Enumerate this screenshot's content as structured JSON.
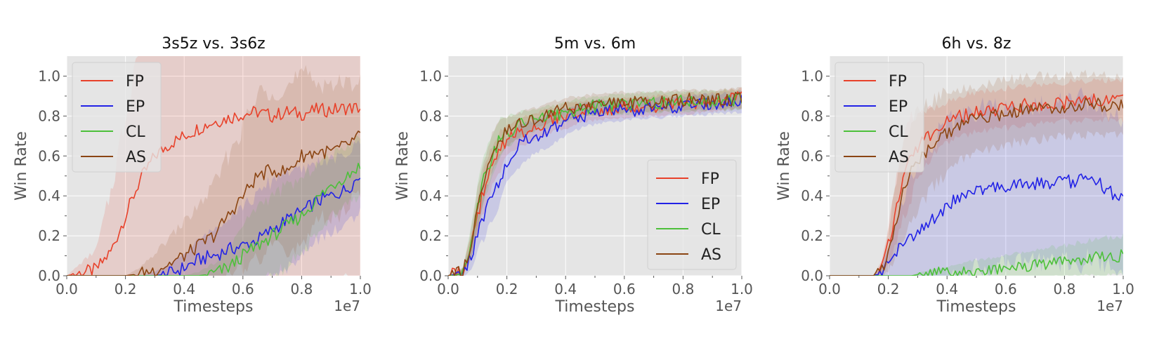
{
  "chart_data": [
    {
      "type": "line",
      "title": "3s5z vs. 3s6z",
      "xlabel": "Timesteps",
      "ylabel": "Win Rate",
      "x_offset_text": "1e7",
      "xlim": [
        0.0,
        1.0
      ],
      "ylim": [
        0.0,
        1.1
      ],
      "xticks": [
        "0.0",
        "0.2",
        "0.4",
        "0.6",
        "0.8",
        "1.0"
      ],
      "yticks": [
        "0.0",
        "0.2",
        "0.4",
        "0.6",
        "0.8",
        "1.0"
      ],
      "grid": true,
      "legend_position": "top-left",
      "x": [
        0.0,
        0.1,
        0.15,
        0.2,
        0.25,
        0.3,
        0.35,
        0.4,
        0.45,
        0.5,
        0.55,
        0.6,
        0.65,
        0.7,
        0.75,
        0.8,
        0.85,
        0.9,
        0.95,
        1.0
      ],
      "series": [
        {
          "name": "FP",
          "color": "#e8412a",
          "values": [
            0.0,
            0.03,
            0.12,
            0.3,
            0.48,
            0.6,
            0.66,
            0.7,
            0.74,
            0.77,
            0.79,
            0.81,
            0.82,
            0.8,
            0.82,
            0.81,
            0.83,
            0.83,
            0.84,
            0.84
          ],
          "band": [
            0.0,
            0.1,
            0.3,
            0.5,
            0.75,
            0.92,
            1.0,
            1.0,
            1.0,
            1.0,
            1.0,
            1.0,
            1.0,
            1.0,
            1.0,
            1.0,
            1.0,
            1.0,
            1.0,
            1.0
          ]
        },
        {
          "name": "EP",
          "color": "#2222e6",
          "values": [
            0.0,
            0.0,
            0.0,
            0.0,
            0.0,
            0.0,
            0.01,
            0.04,
            0.08,
            0.1,
            0.13,
            0.15,
            0.18,
            0.23,
            0.28,
            0.32,
            0.37,
            0.4,
            0.43,
            0.5
          ],
          "band": [
            0.0,
            0.0,
            0.0,
            0.0,
            0.0,
            0.02,
            0.04,
            0.07,
            0.1,
            0.13,
            0.17,
            0.2,
            0.22,
            0.25,
            0.25,
            0.2,
            0.2,
            0.18,
            0.17,
            0.18
          ]
        },
        {
          "name": "CL",
          "color": "#4cc03a",
          "values": [
            0.0,
            0.0,
            0.0,
            0.0,
            0.0,
            0.0,
            0.0,
            0.0,
            0.0,
            0.01,
            0.04,
            0.1,
            0.15,
            0.2,
            0.25,
            0.3,
            0.38,
            0.45,
            0.5,
            0.55
          ],
          "band": [
            0.0,
            0.0,
            0.0,
            0.0,
            0.0,
            0.0,
            0.0,
            0.0,
            0.02,
            0.05,
            0.1,
            0.15,
            0.2,
            0.2,
            0.2,
            0.18,
            0.18,
            0.15,
            0.15,
            0.15
          ]
        },
        {
          "name": "AS",
          "color": "#8b4513",
          "values": [
            0.0,
            0.0,
            0.0,
            0.0,
            0.01,
            0.03,
            0.06,
            0.1,
            0.15,
            0.2,
            0.3,
            0.4,
            0.5,
            0.53,
            0.52,
            0.6,
            0.62,
            0.62,
            0.65,
            0.7
          ],
          "band": [
            0.0,
            0.0,
            0.0,
            0.0,
            0.03,
            0.08,
            0.13,
            0.17,
            0.2,
            0.25,
            0.3,
            0.35,
            0.4,
            0.42,
            0.42,
            0.4,
            0.35,
            0.35,
            0.3,
            0.3
          ]
        }
      ]
    },
    {
      "type": "line",
      "title": "5m vs. 6m",
      "xlabel": "Timesteps",
      "ylabel": "Win Rate",
      "x_offset_text": "1e7",
      "xlim": [
        0.0,
        1.0
      ],
      "ylim": [
        0.0,
        1.1
      ],
      "xticks": [
        "0.0",
        "0.2",
        "0.4",
        "0.6",
        "0.8",
        "1.0"
      ],
      "yticks": [
        "0.0",
        "0.2",
        "0.4",
        "0.6",
        "0.8",
        "1.0"
      ],
      "grid": true,
      "legend_position": "bottom-right",
      "x": [
        0.0,
        0.05,
        0.08,
        0.1,
        0.12,
        0.15,
        0.18,
        0.2,
        0.25,
        0.3,
        0.35,
        0.4,
        0.45,
        0.5,
        0.6,
        0.7,
        0.8,
        0.9,
        1.0
      ],
      "series": [
        {
          "name": "FP",
          "color": "#e8412a",
          "values": [
            0.0,
            0.02,
            0.15,
            0.3,
            0.42,
            0.55,
            0.63,
            0.68,
            0.72,
            0.75,
            0.78,
            0.8,
            0.82,
            0.83,
            0.84,
            0.85,
            0.86,
            0.87,
            0.89
          ],
          "band": [
            0.0,
            0.02,
            0.06,
            0.08,
            0.1,
            0.1,
            0.1,
            0.08,
            0.07,
            0.07,
            0.06,
            0.06,
            0.05,
            0.05,
            0.05,
            0.05,
            0.05,
            0.05,
            0.05
          ]
        },
        {
          "name": "EP",
          "color": "#2222e6",
          "values": [
            0.0,
            0.01,
            0.1,
            0.22,
            0.3,
            0.4,
            0.5,
            0.58,
            0.66,
            0.7,
            0.73,
            0.77,
            0.8,
            0.82,
            0.83,
            0.84,
            0.85,
            0.86,
            0.87
          ],
          "band": [
            0.0,
            0.02,
            0.06,
            0.1,
            0.12,
            0.12,
            0.12,
            0.1,
            0.1,
            0.08,
            0.08,
            0.07,
            0.06,
            0.06,
            0.05,
            0.05,
            0.05,
            0.05,
            0.05
          ]
        },
        {
          "name": "CL",
          "color": "#4cc03a",
          "values": [
            0.0,
            0.02,
            0.18,
            0.35,
            0.48,
            0.6,
            0.7,
            0.72,
            0.76,
            0.78,
            0.8,
            0.82,
            0.84,
            0.85,
            0.86,
            0.87,
            0.87,
            0.88,
            0.88
          ],
          "band": [
            0.0,
            0.02,
            0.08,
            0.1,
            0.12,
            0.1,
            0.1,
            0.08,
            0.06,
            0.06,
            0.05,
            0.05,
            0.05,
            0.05,
            0.05,
            0.05,
            0.05,
            0.05,
            0.05
          ]
        },
        {
          "name": "AS",
          "color": "#8b4513",
          "values": [
            0.0,
            0.02,
            0.17,
            0.33,
            0.47,
            0.62,
            0.7,
            0.72,
            0.76,
            0.79,
            0.82,
            0.84,
            0.85,
            0.86,
            0.87,
            0.87,
            0.88,
            0.88,
            0.89
          ],
          "band": [
            0.0,
            0.02,
            0.07,
            0.1,
            0.1,
            0.1,
            0.08,
            0.07,
            0.06,
            0.05,
            0.05,
            0.05,
            0.05,
            0.05,
            0.05,
            0.05,
            0.05,
            0.05,
            0.05
          ]
        }
      ]
    },
    {
      "type": "line",
      "title": "6h vs. 8z",
      "xlabel": "Timesteps",
      "ylabel": "Win Rate",
      "x_offset_text": "1e7",
      "xlim": [
        0.0,
        1.0
      ],
      "ylim": [
        0.0,
        1.1
      ],
      "xticks": [
        "0.0",
        "0.2",
        "0.4",
        "0.6",
        "0.8",
        "1.0"
      ],
      "yticks": [
        "0.0",
        "0.2",
        "0.4",
        "0.6",
        "0.8",
        "1.0"
      ],
      "grid": true,
      "legend_position": "top-left",
      "x": [
        0.0,
        0.15,
        0.18,
        0.2,
        0.22,
        0.25,
        0.28,
        0.3,
        0.35,
        0.4,
        0.45,
        0.5,
        0.6,
        0.7,
        0.8,
        0.9,
        1.0
      ],
      "series": [
        {
          "name": "FP",
          "color": "#e8412a",
          "values": [
            0.0,
            0.0,
            0.05,
            0.15,
            0.28,
            0.48,
            0.6,
            0.65,
            0.72,
            0.77,
            0.8,
            0.82,
            0.84,
            0.86,
            0.87,
            0.88,
            0.88
          ],
          "band": [
            0.0,
            0.0,
            0.04,
            0.1,
            0.15,
            0.2,
            0.2,
            0.15,
            0.12,
            0.1,
            0.1,
            0.1,
            0.1,
            0.1,
            0.1,
            0.1,
            0.1
          ]
        },
        {
          "name": "EP",
          "color": "#2222e6",
          "values": [
            0.0,
            0.0,
            0.02,
            0.06,
            0.1,
            0.16,
            0.2,
            0.22,
            0.28,
            0.35,
            0.4,
            0.43,
            0.45,
            0.46,
            0.47,
            0.48,
            0.38
          ],
          "band": [
            0.0,
            0.0,
            0.03,
            0.08,
            0.15,
            0.22,
            0.3,
            0.35,
            0.4,
            0.4,
            0.4,
            0.4,
            0.4,
            0.4,
            0.4,
            0.4,
            0.4
          ]
        },
        {
          "name": "CL",
          "color": "#4cc03a",
          "values": [
            0.0,
            0.0,
            0.0,
            0.0,
            0.0,
            0.0,
            0.0,
            0.005,
            0.01,
            0.015,
            0.02,
            0.03,
            0.04,
            0.06,
            0.07,
            0.09,
            0.1
          ],
          "band": [
            0.0,
            0.0,
            0.0,
            0.0,
            0.0,
            0.0,
            0.0,
            0.01,
            0.02,
            0.03,
            0.04,
            0.05,
            0.06,
            0.07,
            0.08,
            0.09,
            0.1
          ]
        },
        {
          "name": "AS",
          "color": "#8b4513",
          "values": [
            0.0,
            0.0,
            0.03,
            0.12,
            0.25,
            0.42,
            0.52,
            0.58,
            0.66,
            0.72,
            0.76,
            0.78,
            0.82,
            0.84,
            0.85,
            0.86,
            0.85
          ],
          "band": [
            0.0,
            0.0,
            0.04,
            0.1,
            0.16,
            0.22,
            0.25,
            0.25,
            0.22,
            0.2,
            0.18,
            0.17,
            0.16,
            0.16,
            0.15,
            0.15,
            0.15
          ]
        }
      ]
    }
  ]
}
